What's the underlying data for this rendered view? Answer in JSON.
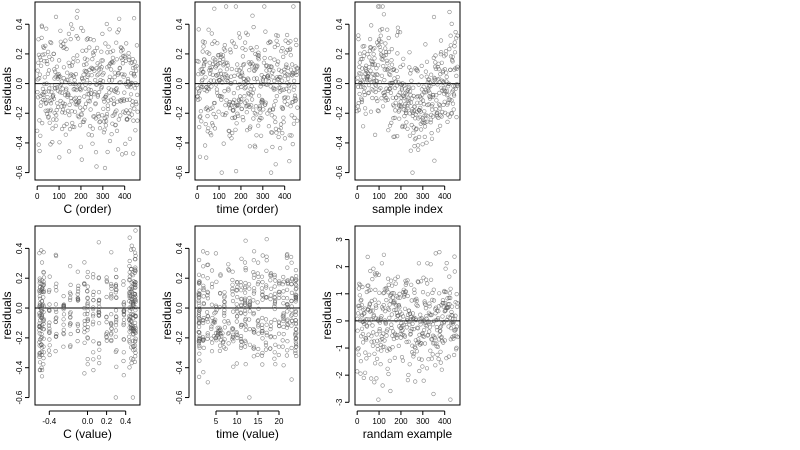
{
  "chart_data": [
    {
      "id": "c-order",
      "type": "scatter",
      "xlabel": "C (order)",
      "ylabel": "residuals",
      "xlim": [
        -10,
        470
      ],
      "ylim": [
        -0.65,
        0.55
      ],
      "xticks": [
        0,
        100,
        200,
        300,
        400
      ],
      "xtick_labels": [
        "0",
        "100",
        "200",
        "300",
        "400"
      ],
      "yticks": [
        -0.6,
        -0.4,
        -0.2,
        0.0,
        0.2,
        0.4
      ],
      "ytick_labels": [
        "-0.6",
        "-0.4",
        "-0.2",
        "0.0",
        "0.2",
        "0.4"
      ],
      "hline": 0,
      "n_points": 460,
      "points_description": "residuals against observation order; spread roughly -0.6 to 0.5, no trend"
    },
    {
      "id": "time-order",
      "type": "scatter",
      "xlabel": "time (order)",
      "ylabel": "residuals",
      "xlim": [
        -10,
        470
      ],
      "ylim": [
        -0.65,
        0.55
      ],
      "xticks": [
        0,
        100,
        200,
        300,
        400
      ],
      "xtick_labels": [
        "0",
        "100",
        "200",
        "300",
        "400"
      ],
      "yticks": [
        -0.6,
        -0.4,
        -0.2,
        0.0,
        0.2,
        0.4
      ],
      "ytick_labels": [
        "-0.6",
        "-0.4",
        "-0.2",
        "0.0",
        "0.2",
        "0.4"
      ],
      "hline": 0,
      "n_points": 460,
      "points_description": "residuals against time order; spread roughly -0.6 to 0.5"
    },
    {
      "id": "sample-index",
      "type": "scatter",
      "xlabel": "sample index",
      "ylabel": "residuals",
      "xlim": [
        -10,
        470
      ],
      "ylim": [
        -0.65,
        0.55
      ],
      "xticks": [
        0,
        100,
        200,
        300,
        400
      ],
      "xtick_labels": [
        "0",
        "100",
        "200",
        "300",
        "400"
      ],
      "yticks": [
        -0.6,
        -0.4,
        -0.2,
        0.0,
        0.2,
        0.4
      ],
      "ytick_labels": [
        "-0.6",
        "-0.4",
        "-0.2",
        "0.0",
        "0.2",
        "0.4"
      ],
      "hline": 0,
      "n_points": 460,
      "points_description": "residuals against sample index; wavy structure with higher values around 100 and lower around 300-450"
    },
    {
      "id": "c-value",
      "type": "scatter",
      "xlabel": "C (value)",
      "ylabel": "residuals",
      "xlim": [
        -0.55,
        0.55
      ],
      "ylim": [
        -0.65,
        0.55
      ],
      "xticks": [
        -0.4,
        0.0,
        0.2,
        0.4
      ],
      "xtick_labels": [
        "-0.4",
        "0.0",
        "0.2",
        "0.4"
      ],
      "yticks": [
        -0.6,
        -0.4,
        -0.2,
        0.0,
        0.2,
        0.4
      ],
      "ytick_labels": [
        "-0.6",
        "-0.4",
        "-0.2",
        "0.0",
        "0.2",
        "0.4"
      ],
      "hline": 0,
      "n_points": 460,
      "points_description": "residuals against C value; points fall in vertical columns at discrete C values, denser at the ends near -0.5 and 0.5"
    },
    {
      "id": "time-value",
      "type": "scatter",
      "xlabel": "time (value)",
      "ylabel": "residuals",
      "xlim": [
        0,
        25
      ],
      "ylim": [
        -0.65,
        0.55
      ],
      "xticks": [
        5,
        10,
        15,
        20
      ],
      "xtick_labels": [
        "5",
        "10",
        "15",
        "20"
      ],
      "yticks": [
        -0.6,
        -0.4,
        -0.2,
        0.0,
        0.2,
        0.4
      ],
      "ytick_labels": [
        "-0.6",
        "-0.4",
        "-0.2",
        "0.0",
        "0.2",
        "0.4"
      ],
      "hline": 0,
      "n_points": 460,
      "points_description": "residuals against time value 1 to 24; vertical columns at integer times, dense columns at 12 and 24, descending streak near time 5-7"
    },
    {
      "id": "random-example",
      "type": "scatter",
      "xlabel": "randam example",
      "ylabel": "residuals",
      "xlim": [
        -10,
        470
      ],
      "ylim": [
        -3.1,
        3.5
      ],
      "xticks": [
        0,
        100,
        200,
        300,
        400
      ],
      "xtick_labels": [
        "0",
        "100",
        "200",
        "300",
        "400"
      ],
      "yticks": [
        -3,
        -2,
        -1,
        0,
        1,
        2,
        3
      ],
      "ytick_labels": [
        "-3",
        "-2",
        "-1",
        "0",
        "1",
        "2",
        "3"
      ],
      "hline": 0,
      "n_points": 460,
      "points_description": "random normal residuals for comparison; spread roughly -3 to 3, no structure"
    }
  ]
}
